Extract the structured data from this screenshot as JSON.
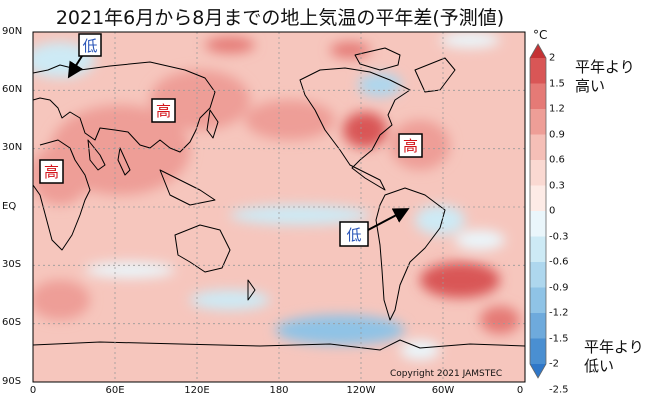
{
  "title": "2021年6月から8月までの地上気温の平年差(予測値)",
  "lat_ticks": [
    "90N",
    "60N",
    "30N",
    "EQ",
    "30S",
    "60S",
    "90S"
  ],
  "lon_ticks": [
    "0",
    "60E",
    "120E",
    "180",
    "120W",
    "60W",
    "0"
  ],
  "colorbar": {
    "unit": "°C",
    "ticks": [
      "2",
      "1.5",
      "1.2",
      "0.9",
      "0.6",
      "0.3",
      "0",
      "-0.3",
      "-0.6",
      "-0.9",
      "-1.2",
      "-1.5",
      "-2",
      "-2.5"
    ],
    "colors_warm": [
      "#c43234",
      "#d95656",
      "#e57a76",
      "#ee9e97",
      "#f5bfb7",
      "#fad9d2",
      "#fdebe6"
    ],
    "colors_cool": [
      "#eaf6fb",
      "#cdeaf5",
      "#aed7ee",
      "#8fc3e6",
      "#6eaadc",
      "#4a8fd1",
      "#2f77c8"
    ]
  },
  "legend_high": [
    "平年より",
    "高い"
  ],
  "legend_low": [
    "平年より",
    "低い"
  ],
  "annotations": [
    {
      "text": "低",
      "color": "#2a55b8"
    },
    {
      "text": "高",
      "color": "#d3141a"
    },
    {
      "text": "高",
      "color": "#d3141a"
    },
    {
      "text": "高",
      "color": "#d3141a"
    },
    {
      "text": "低",
      "color": "#2a55b8"
    }
  ],
  "copyright": "Copyright 2021 JAMSTEC"
}
